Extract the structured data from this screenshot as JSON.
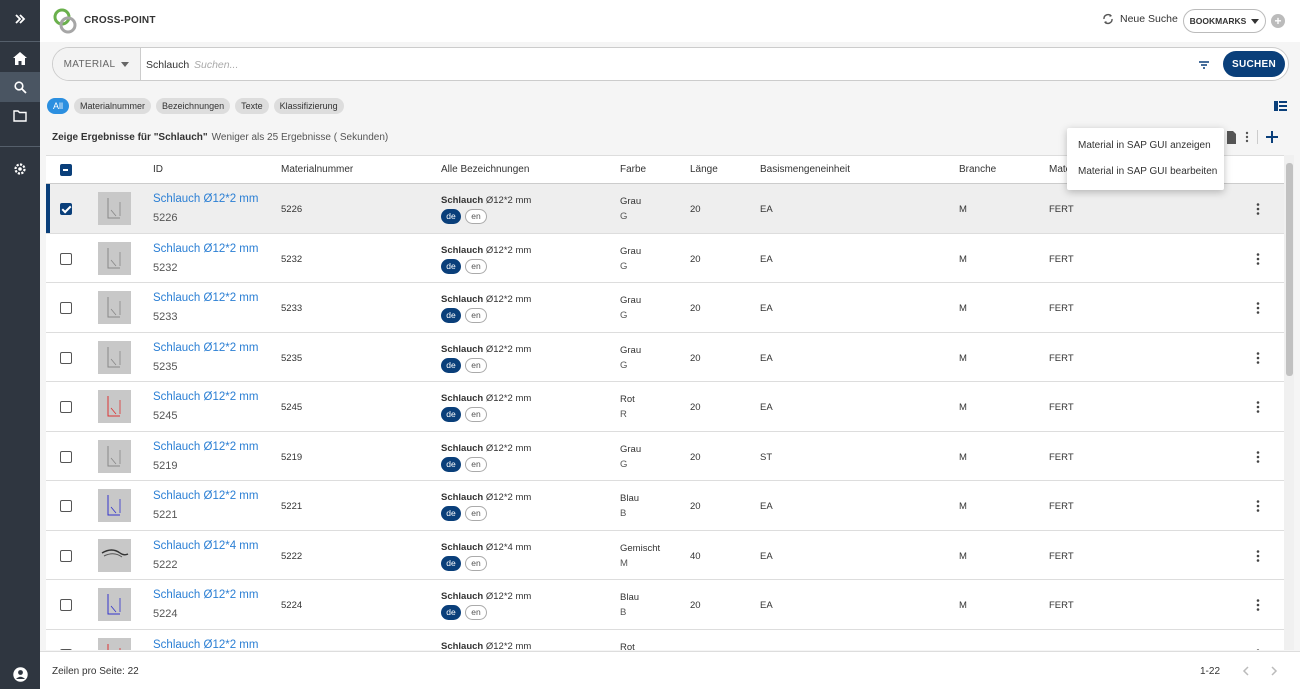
{
  "app": {
    "title": "CROSS-POINT"
  },
  "header": {
    "new_search": "Neue Suche",
    "bookmarks": "BOOKMARKS",
    "add": "+"
  },
  "search": {
    "type": "MATERIAL",
    "query": "Schlauch",
    "placeholder": "Suchen...",
    "button": "SUCHEN"
  },
  "chips": [
    "All",
    "Materialnummer",
    "Bezeichnungen",
    "Texte",
    "Klassifizierung"
  ],
  "results": {
    "title": "Zeige Ergebnisse für \"Schlauch\"",
    "subtitle": "Weniger als 25 Ergebnisse ( Sekunden)"
  },
  "columns": [
    "ID",
    "Materialnummer",
    "Alle Bezeichnungen",
    "Farbe",
    "Länge",
    "Basismengeneinheit",
    "Branche",
    "Mate"
  ],
  "context_menu": [
    "Material in SAP GUI anzeigen",
    "Material in SAP GUI bearbeiten"
  ],
  "rows": [
    {
      "name": "Schlauch Ø12*2 mm",
      "id": "5226",
      "matnr": "5226",
      "bez": "Schlauch",
      "bez_rest": " Ø12*2 mm",
      "farbe": "Grau",
      "farbe_code": "G",
      "laenge": "20",
      "basis": "EA",
      "branche": "M",
      "mat": "FERT",
      "lang_de": "de",
      "lang_en": "en",
      "thumb": "gray"
    },
    {
      "name": "Schlauch Ø12*2 mm",
      "id": "5232",
      "matnr": "5232",
      "bez": "Schlauch",
      "bez_rest": " Ø12*2 mm",
      "farbe": "Grau",
      "farbe_code": "G",
      "laenge": "20",
      "basis": "EA",
      "branche": "M",
      "mat": "FERT",
      "lang_de": "de",
      "lang_en": "en",
      "thumb": "gray"
    },
    {
      "name": "Schlauch Ø12*2 mm",
      "id": "5233",
      "matnr": "5233",
      "bez": "Schlauch",
      "bez_rest": " Ø12*2 mm",
      "farbe": "Grau",
      "farbe_code": "G",
      "laenge": "20",
      "basis": "EA",
      "branche": "M",
      "mat": "FERT",
      "lang_de": "de",
      "lang_en": "en",
      "thumb": "gray"
    },
    {
      "name": "Schlauch Ø12*2 mm",
      "id": "5235",
      "matnr": "5235",
      "bez": "Schlauch",
      "bez_rest": " Ø12*2 mm",
      "farbe": "Grau",
      "farbe_code": "G",
      "laenge": "20",
      "basis": "EA",
      "branche": "M",
      "mat": "FERT",
      "lang_de": "de",
      "lang_en": "en",
      "thumb": "gray"
    },
    {
      "name": "Schlauch Ø12*2 mm",
      "id": "5245",
      "matnr": "5245",
      "bez": "Schlauch",
      "bez_rest": " Ø12*2 mm",
      "farbe": "Rot",
      "farbe_code": "R",
      "laenge": "20",
      "basis": "EA",
      "branche": "M",
      "mat": "FERT",
      "lang_de": "de",
      "lang_en": "en",
      "thumb": "red"
    },
    {
      "name": "Schlauch Ø12*2 mm",
      "id": "5219",
      "matnr": "5219",
      "bez": "Schlauch",
      "bez_rest": " Ø12*2 mm",
      "farbe": "Grau",
      "farbe_code": "G",
      "laenge": "20",
      "basis": "ST",
      "branche": "M",
      "mat": "FERT",
      "lang_de": "de",
      "lang_en": "en",
      "thumb": "gray"
    },
    {
      "name": "Schlauch Ø12*2 mm",
      "id": "5221",
      "matnr": "5221",
      "bez": "Schlauch",
      "bez_rest": " Ø12*2 mm",
      "farbe": "Blau",
      "farbe_code": "B",
      "laenge": "20",
      "basis": "EA",
      "branche": "M",
      "mat": "FERT",
      "lang_de": "de",
      "lang_en": "en",
      "thumb": "blue"
    },
    {
      "name": "Schlauch Ø12*4 mm",
      "id": "5222",
      "matnr": "5222",
      "bez": "Schlauch",
      "bez_rest": " Ø12*4 mm",
      "farbe": "Gemischt",
      "farbe_code": "M",
      "laenge": "40",
      "basis": "EA",
      "branche": "M",
      "mat": "FERT",
      "lang_de": "de",
      "lang_en": "en",
      "thumb": "dark"
    },
    {
      "name": "Schlauch Ø12*2 mm",
      "id": "5224",
      "matnr": "5224",
      "bez": "Schlauch",
      "bez_rest": " Ø12*2 mm",
      "farbe": "Blau",
      "farbe_code": "B",
      "laenge": "20",
      "basis": "EA",
      "branche": "M",
      "mat": "FERT",
      "lang_de": "de",
      "lang_en": "en",
      "thumb": "blue"
    },
    {
      "name": "Schlauch Ø12*2 mm",
      "id": "",
      "matnr": "",
      "bez": "Schlauch",
      "bez_rest": " Ø12*2 mm",
      "farbe": "Rot",
      "farbe_code": "",
      "laenge": "",
      "basis": "",
      "branche": "",
      "mat": "",
      "lang_de": "",
      "lang_en": "",
      "thumb": "red"
    }
  ],
  "footer": {
    "rows_per_page": "Zeilen pro Seite: 22",
    "range": "1-22"
  },
  "icons": {
    "expand": "chevrons-right-icon",
    "home": "home-icon",
    "search": "search-icon",
    "folder": "folder-icon",
    "settings": "gear-icon",
    "account": "account-icon"
  },
  "colors": {
    "primary": "#0a3f7a",
    "link": "#2b7fd4",
    "sidebar": "#2f3640"
  }
}
